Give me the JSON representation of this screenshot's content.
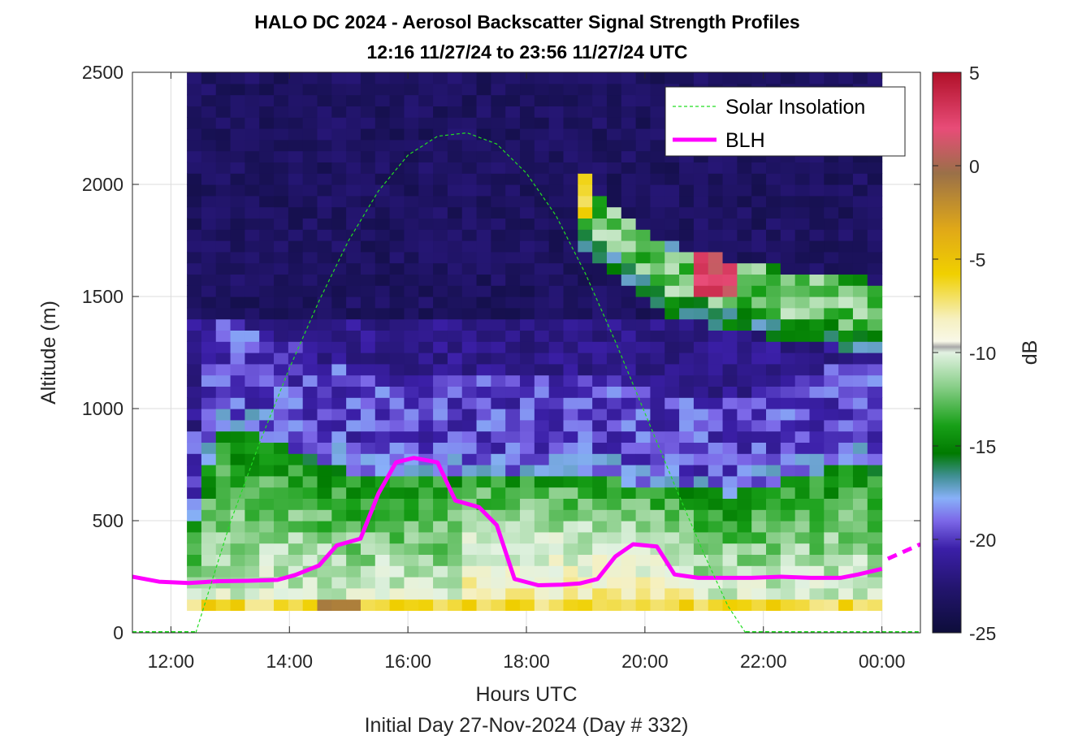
{
  "chart_data": {
    "type": "heatmap",
    "title": "HALO DC 2024 - Aerosol Backscatter Signal Strength Profiles",
    "subtitle": "12:16 11/27/24 to 23:56 11/27/24  UTC",
    "xlabel": "Hours UTC",
    "ylabel": "Altitude (m)",
    "footer": "Initial Day 27-Nov-2024 (Day # 332)",
    "xlim": [
      11.35,
      24.65
    ],
    "ylim": [
      0,
      2500
    ],
    "x_ticks": [
      12,
      14,
      16,
      18,
      20,
      22,
      24
    ],
    "x_tick_labels": [
      "12:00",
      "14:00",
      "16:00",
      "18:00",
      "20:00",
      "22:00",
      "00:00"
    ],
    "y_ticks": [
      0,
      500,
      1000,
      1500,
      2000,
      2500
    ],
    "y_tick_labels": [
      "0",
      "500",
      "1000",
      "1500",
      "2000",
      "2500"
    ],
    "grid": true,
    "colorbar": {
      "label": "dB",
      "min": -25,
      "max": 5,
      "ticks": [
        5,
        0,
        -5,
        -10,
        -15,
        -20,
        -25
      ],
      "tick_labels": [
        "5",
        "0",
        "-5",
        "-10",
        "-15",
        "-20",
        "-25"
      ],
      "colors": [
        "#0d0d3a",
        "#3b1fa8",
        "#7c68e8",
        "#88b0f8",
        "#3f8f92",
        "#007a00",
        "#18a018",
        "#8acf8a",
        "#e2f2e2",
        "#f6f0c0",
        "#f0d000",
        "#e0a818",
        "#9a7048",
        "#e84c78",
        "#b01028"
      ]
    },
    "legend": {
      "placement": "top-right",
      "entries": [
        "Solar Insolation",
        "BLH"
      ]
    },
    "heatmap": {
      "x_start": 12.27,
      "x_end": 24.0,
      "y_bin_m": 50,
      "description_of_values": "Backscatter signal strength in dB; ~-24 above 1000 m, ~-15 in boundary layer, ~-10 near surface"
    },
    "series": [
      {
        "name": "BLH",
        "color": "#ff00ff",
        "x": [
          11.35,
          11.8,
          12.3,
          12.8,
          13.3,
          13.8,
          14.1,
          14.5,
          14.8,
          15.2,
          15.5,
          15.8,
          16.1,
          16.5,
          16.8,
          17.2,
          17.5,
          17.8,
          18.2,
          18.6,
          18.9,
          19.2,
          19.5,
          19.8,
          20.2,
          20.5,
          20.9,
          21.3,
          21.8,
          22.3,
          22.8,
          23.3,
          23.6,
          24.0
        ],
        "y": [
          250,
          228,
          222,
          230,
          232,
          236,
          258,
          300,
          390,
          420,
          620,
          760,
          780,
          760,
          590,
          560,
          480,
          240,
          212,
          215,
          220,
          240,
          340,
          395,
          385,
          260,
          245,
          245,
          245,
          250,
          245,
          245,
          260,
          285
        ]
      },
      {
        "name": "BLH (dashed extension)",
        "color": "#ff00ff",
        "x": [
          24.1,
          24.65
        ],
        "y": [
          330,
          395
        ]
      },
      {
        "name": "Solar Insolation",
        "color": "#22dd22",
        "x": [
          12.42,
          13.0,
          13.5,
          14.0,
          14.5,
          15.0,
          15.5,
          16.0,
          16.5,
          17.0,
          17.5,
          18.0,
          18.5,
          19.0,
          19.5,
          20.0,
          20.5,
          21.0,
          21.4,
          21.7
        ],
        "y": [
          0,
          490,
          850,
          1180,
          1480,
          1750,
          1970,
          2130,
          2215,
          2230,
          2180,
          2050,
          1860,
          1600,
          1300,
          980,
          660,
          350,
          120,
          0
        ]
      }
    ]
  }
}
